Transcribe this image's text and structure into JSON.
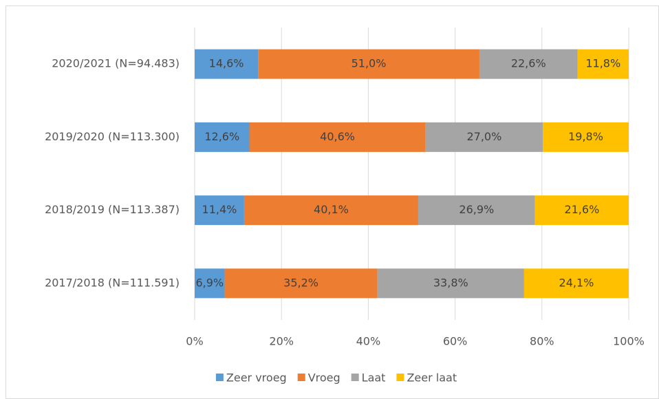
{
  "chart_data": {
    "type": "stacked_bar_horizontal",
    "categories": [
      "2020/2021 (N=94.483)",
      "2019/2020 (N=113.300)",
      "2018/2019 (N=113.387)",
      "2017/2018 (N=111.591)"
    ],
    "series": [
      {
        "name": "Zeer vroeg",
        "color": "#5b9bd5",
        "values": [
          14.6,
          12.6,
          11.4,
          6.9
        ],
        "value_labels": [
          "14,6%",
          "12,6%",
          "11,4%",
          "6,9%"
        ]
      },
      {
        "name": "Vroeg",
        "color": "#ed7d31",
        "values": [
          51.0,
          40.6,
          40.1,
          35.2
        ],
        "value_labels": [
          "51,0%",
          "40,6%",
          "40,1%",
          "35,2%"
        ]
      },
      {
        "name": "Laat",
        "color": "#a5a5a5",
        "values": [
          22.6,
          27.0,
          26.9,
          33.8
        ],
        "value_labels": [
          "22,6%",
          "27,0%",
          "26,9%",
          "33,8%"
        ]
      },
      {
        "name": "Zeer laat",
        "color": "#ffc000",
        "values": [
          11.8,
          19.8,
          21.6,
          24.1
        ],
        "value_labels": [
          "11,8%",
          "19,8%",
          "21,6%",
          "24,1%"
        ]
      }
    ],
    "xlim": [
      0,
      100
    ],
    "xticks": [
      {
        "value": 0,
        "label": "0%"
      },
      {
        "value": 20,
        "label": "20%"
      },
      {
        "value": 40,
        "label": "40%"
      },
      {
        "value": 60,
        "label": "60%"
      },
      {
        "value": 80,
        "label": "80%"
      },
      {
        "value": 100,
        "label": "100%"
      }
    ],
    "grid": true,
    "legend": "bottom"
  }
}
